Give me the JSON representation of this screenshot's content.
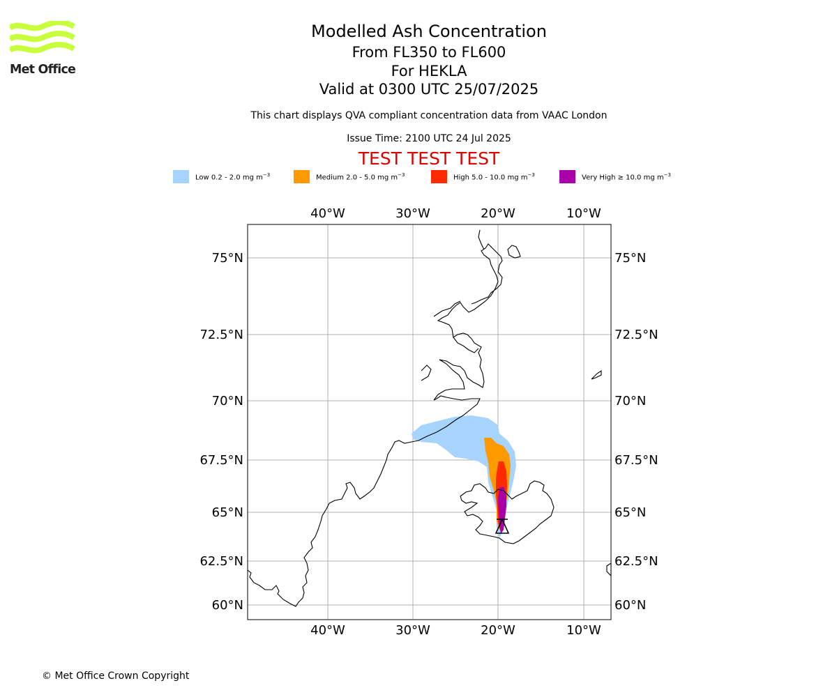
{
  "header": {
    "logo_text": "Met Office",
    "title": "Modelled Ash Concentration",
    "levels": "From FL350 to FL600",
    "volcano": "For HEKLA",
    "valid": "Valid at 0300 UTC 25/07/2025",
    "description": "This chart displays QVA compliant concentration data from VAAC London",
    "issue_time": "Issue Time: 2100 UTC 24 Jul 2025",
    "test_banner": "TEST TEST TEST"
  },
  "legend": [
    {
      "label": "Low 0.2 - 2.0 mg m",
      "exponent": "−3",
      "color": "#a6d4fc"
    },
    {
      "label": "Medium 2.0 - 5.0 mg m",
      "exponent": "−3",
      "color": "#ff9900"
    },
    {
      "label": "High 5.0 - 10.0 mg m",
      "exponent": "−3",
      "color": "#ff2a00"
    },
    {
      "label": "Very High  ≥  10.0 mg m",
      "exponent": "−3",
      "color": "#aa00aa"
    }
  ],
  "map": {
    "lon_labels": [
      "40°W",
      "30°W",
      "20°W",
      "10°W"
    ],
    "lat_labels": [
      "75°N",
      "72.5°N",
      "70°N",
      "67.5°N",
      "65°N",
      "62.5°N",
      "60°N"
    ],
    "grid": true,
    "volcano_symbol": "volcano-triangle-icon"
  },
  "footer": {
    "copyright": "© Met Office Crown Copyright"
  }
}
